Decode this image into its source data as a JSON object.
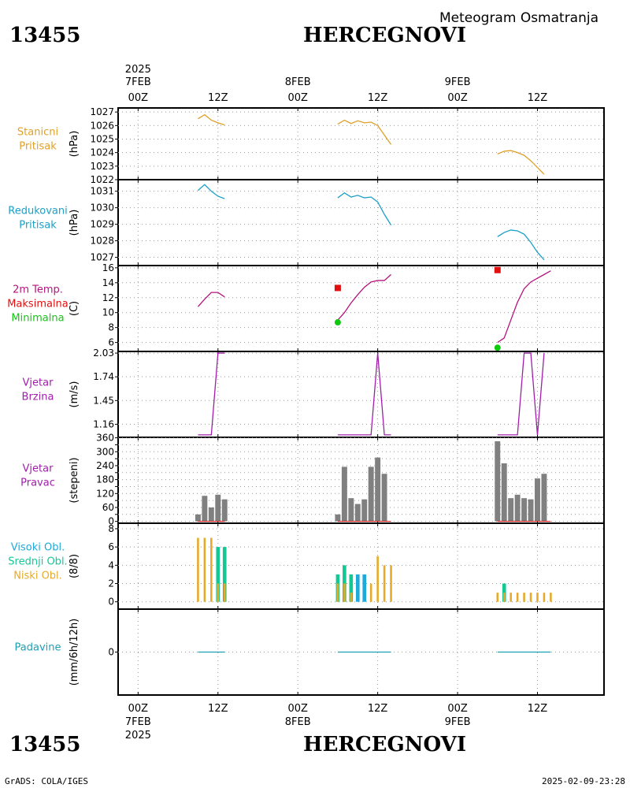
{
  "header": {
    "station_id": "13455",
    "station_name": "HERCEGNOVI",
    "subtitle": "Meteogram Osmatranja"
  },
  "footer": {
    "left": "GrADS: COLA/IGES",
    "right": "2025-02-09-23:28"
  },
  "time_axis": {
    "year": "2025",
    "ticks": [
      {
        "hour": 0,
        "top": "00Z",
        "date": "7FEB"
      },
      {
        "hour": 12,
        "top": "12Z",
        "date": ""
      },
      {
        "hour": 24,
        "top": "00Z",
        "date": "8FEB"
      },
      {
        "hour": 36,
        "top": "12Z",
        "date": ""
      },
      {
        "hour": 48,
        "top": "00Z",
        "date": "9FEB"
      },
      {
        "hour": 60,
        "top": "12Z",
        "date": ""
      }
    ],
    "range_hours": [
      -3,
      70
    ]
  },
  "colors": {
    "station_pressure": "#e0a028",
    "reduced_pressure": "#1ca0c8",
    "temperature": "#b4147c",
    "maximum": "#e01010",
    "minimum": "#10c810",
    "wind": "#a01eaa",
    "bars": "#808080",
    "high_cloud": "#1eaadc",
    "mid_cloud": "#14c896",
    "low_cloud": "#e6aa28",
    "precip": "#1ea0b4"
  },
  "chart_data": [
    {
      "type": "line",
      "panel_labels": [
        "Stanicni",
        "Pritisak"
      ],
      "ylabel": "(hPa)",
      "ylim": [
        1022,
        1027.3
      ],
      "yticks": [
        1022,
        1023,
        1024,
        1025,
        1026,
        1027
      ],
      "series": [
        {
          "segments": [
            [
              [
                9,
                1026.5
              ],
              [
                10,
                1026.8
              ],
              [
                11,
                1026.4
              ],
              [
                12,
                1026.2
              ],
              [
                13,
                1026.05
              ]
            ],
            [
              [
                30,
                1026.1
              ],
              [
                31,
                1026.4
              ],
              [
                32,
                1026.15
              ],
              [
                33,
                1026.35
              ],
              [
                34,
                1026.2
              ],
              [
                35,
                1026.25
              ],
              [
                36,
                1026.0
              ],
              [
                37,
                1025.3
              ],
              [
                38,
                1024.6
              ]
            ],
            [
              [
                54,
                1023.9
              ],
              [
                55,
                1024.1
              ],
              [
                56,
                1024.15
              ],
              [
                57,
                1024.0
              ],
              [
                58,
                1023.8
              ],
              [
                59,
                1023.4
              ],
              [
                60,
                1022.9
              ],
              [
                61,
                1022.4
              ]
            ]
          ]
        }
      ]
    },
    {
      "type": "line",
      "panel_labels": [
        "Redukovani",
        "Pritisak"
      ],
      "ylabel": "(hPa)",
      "ylim": [
        1026.5,
        1031.7
      ],
      "yticks": [
        1027,
        1028,
        1029,
        1030,
        1031
      ],
      "series": [
        {
          "segments": [
            [
              [
                9,
                1031.05
              ],
              [
                10,
                1031.4
              ],
              [
                11,
                1031.0
              ],
              [
                12,
                1030.7
              ],
              [
                13,
                1030.55
              ]
            ],
            [
              [
                30,
                1030.6
              ],
              [
                31,
                1030.9
              ],
              [
                32,
                1030.65
              ],
              [
                33,
                1030.75
              ],
              [
                34,
                1030.6
              ],
              [
                35,
                1030.65
              ],
              [
                36,
                1030.35
              ],
              [
                37,
                1029.6
              ],
              [
                38,
                1028.95
              ]
            ],
            [
              [
                54,
                1028.25
              ],
              [
                55,
                1028.5
              ],
              [
                56,
                1028.65
              ],
              [
                57,
                1028.6
              ],
              [
                58,
                1028.4
              ],
              [
                59,
                1027.9
              ],
              [
                60,
                1027.3
              ],
              [
                61,
                1026.85
              ]
            ]
          ]
        }
      ]
    },
    {
      "type": "line",
      "panel_labels": [
        "2m Temp.",
        "Maksimalna",
        "Minimalna"
      ],
      "ylabel": "(C)",
      "ylim": [
        4.8,
        16.3
      ],
      "yticks": [
        6,
        8,
        10,
        12,
        14,
        16
      ],
      "series": [
        {
          "name": "2m Temp.",
          "segments": [
            [
              [
                9,
                10.8
              ],
              [
                10,
                11.8
              ],
              [
                11,
                12.7
              ],
              [
                12,
                12.7
              ],
              [
                13,
                12.1
              ]
            ],
            [
              [
                30,
                9.0
              ],
              [
                31,
                10.0
              ],
              [
                32,
                11.3
              ],
              [
                33,
                12.4
              ],
              [
                34,
                13.4
              ],
              [
                35,
                14.1
              ],
              [
                36,
                14.3
              ],
              [
                37,
                14.3
              ],
              [
                38,
                15.1
              ]
            ],
            [
              [
                54,
                6.0
              ],
              [
                55,
                6.6
              ],
              [
                56,
                9.0
              ],
              [
                57,
                11.4
              ],
              [
                58,
                13.2
              ],
              [
                59,
                14.1
              ],
              [
                60,
                14.6
              ],
              [
                61,
                15.1
              ],
              [
                62,
                15.6
              ]
            ]
          ]
        },
        {
          "name": "Maksimalna",
          "points": [
            [
              30,
              13.3
            ],
            [
              54,
              15.7
            ]
          ]
        },
        {
          "name": "Minimalna",
          "points": [
            [
              30,
              8.7
            ],
            [
              54,
              5.3
            ]
          ]
        }
      ]
    },
    {
      "type": "line",
      "panel_labels": [
        "Vjetar",
        "Brzina"
      ],
      "ylabel": "(m/s)",
      "ylim": [
        1.0,
        2.05
      ],
      "yticks": [
        1.16,
        1.45,
        1.74,
        2.03
      ],
      "series": [
        {
          "segments": [
            [
              [
                9,
                1.03
              ],
              [
                10,
                1.03
              ],
              [
                11,
                1.03
              ],
              [
                12,
                2.03
              ],
              [
                13,
                2.03
              ]
            ],
            [
              [
                30,
                1.03
              ],
              [
                31,
                1.03
              ],
              [
                32,
                1.03
              ],
              [
                33,
                1.03
              ],
              [
                34,
                1.03
              ],
              [
                35,
                1.03
              ],
              [
                36,
                2.03
              ],
              [
                37,
                1.03
              ],
              [
                38,
                1.03
              ]
            ],
            [
              [
                54,
                1.03
              ],
              [
                55,
                1.03
              ],
              [
                56,
                1.03
              ],
              [
                57,
                1.03
              ],
              [
                58,
                2.03
              ],
              [
                59,
                2.03
              ],
              [
                60,
                1.03
              ],
              [
                61,
                2.03
              ]
            ]
          ]
        }
      ]
    },
    {
      "type": "bar",
      "panel_labels": [
        "Vjetar",
        "Pravac"
      ],
      "ylabel": "(stepeni)",
      "ylim": [
        -8,
        362
      ],
      "yticks": [
        0,
        30,
        60,
        90,
        120,
        150,
        180,
        210,
        240,
        270,
        300,
        330,
        360
      ],
      "ytick_labels": [
        "0",
        "",
        "60",
        "",
        "120",
        "",
        "180",
        "",
        "240",
        "",
        "300",
        "",
        "360"
      ],
      "bars": [
        [
          9,
          30
        ],
        [
          10,
          110
        ],
        [
          11,
          60
        ],
        [
          12,
          115
        ],
        [
          13,
          95
        ],
        [
          30,
          30
        ],
        [
          31,
          235
        ],
        [
          32,
          100
        ],
        [
          33,
          75
        ],
        [
          34,
          95
        ],
        [
          35,
          235
        ],
        [
          36,
          275
        ],
        [
          37,
          205
        ],
        [
          54,
          345
        ],
        [
          55,
          250
        ],
        [
          56,
          100
        ],
        [
          57,
          115
        ],
        [
          58,
          100
        ],
        [
          59,
          95
        ],
        [
          60,
          185
        ],
        [
          61,
          205
        ]
      ]
    },
    {
      "type": "bar",
      "panel_labels": [
        "Visoki Obl.",
        "Srednji Obl.",
        "Niski Obl."
      ],
      "ylabel": "(8/8)",
      "ylim": [
        -0.8,
        8.6
      ],
      "yticks": [
        0,
        2,
        4,
        6,
        8
      ],
      "series": [
        {
          "name": "Visoki Obl.",
          "values": [
            [
              33,
              3
            ],
            [
              34,
              3
            ]
          ]
        },
        {
          "name": "Srednji Obl.",
          "values": [
            [
              12,
              6
            ],
            [
              13,
              6
            ],
            [
              30,
              3
            ],
            [
              31,
              4
            ],
            [
              32,
              3
            ],
            [
              55,
              2
            ]
          ]
        },
        {
          "name": "Niski Obl.",
          "values": [
            [
              9,
              7
            ],
            [
              10,
              7
            ],
            [
              11,
              7
            ],
            [
              12,
              2
            ],
            [
              13,
              2
            ],
            [
              30,
              2
            ],
            [
              31,
              2
            ],
            [
              32,
              1
            ],
            [
              35,
              2
            ],
            [
              36,
              5
            ],
            [
              37,
              4
            ],
            [
              38,
              4
            ],
            [
              54,
              1
            ],
            [
              55,
              1
            ],
            [
              56,
              1
            ],
            [
              57,
              1
            ],
            [
              58,
              1
            ],
            [
              59,
              1
            ],
            [
              60,
              1
            ],
            [
              61,
              1
            ],
            [
              62,
              1
            ]
          ]
        }
      ]
    },
    {
      "type": "line",
      "panel_labels": [
        "Padavine"
      ],
      "ylabel": "(mm/6h/12h)",
      "ylim": [
        -1,
        1
      ],
      "yticks": [
        0
      ],
      "series": [
        {
          "segments": [
            [
              [
                9,
                0
              ],
              [
                13,
                0
              ]
            ],
            [
              [
                30,
                0
              ],
              [
                38,
                0
              ]
            ],
            [
              [
                54,
                0
              ],
              [
                62,
                0
              ]
            ]
          ]
        }
      ]
    }
  ]
}
